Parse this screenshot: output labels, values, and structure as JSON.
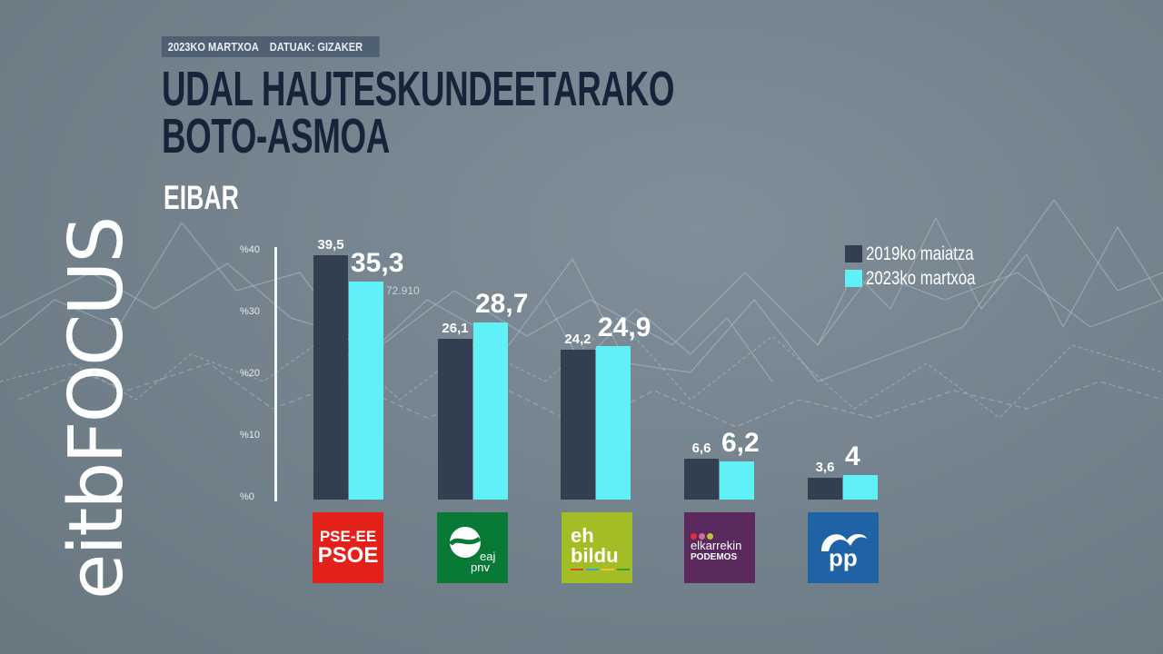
{
  "header": {
    "date_tag": "2023KO MARTXOA",
    "source_tag": "DATUAK: GIZAKER",
    "title_line1": "UDAL HAUTESKUNDEETARAKO",
    "title_line2": "BOTO-ASMOA",
    "subtitle": "EIBAR"
  },
  "brand": {
    "logo_text": "eitbFOCUS"
  },
  "colors": {
    "series_2019": "#323f50",
    "series_2023": "#5ff0f8",
    "background": "#74838d",
    "title": "#172338"
  },
  "annotation": "72.910",
  "parties": [
    {
      "name": "PSE-EE PSOE",
      "line1": "PSE-EE",
      "line2": "PSOE",
      "color": "#e4201b"
    },
    {
      "name": "EAJ-PNV",
      "line1": "eaj",
      "line2": "pnv",
      "color": "#087a36"
    },
    {
      "name": "EH Bildu",
      "line1": "eh",
      "line2": "bildu",
      "color": "#a3be24"
    },
    {
      "name": "Elkarrekin Podemos",
      "line1": "elkarrekin",
      "line2": "PODEMOS",
      "color": "#5a2a5f"
    },
    {
      "name": "PP",
      "line1": "PP",
      "line2": "",
      "color": "#1f63a6"
    }
  ],
  "chart_data": {
    "type": "bar",
    "title": "UDAL HAUTESKUNDEETARAKO BOTO-ASMOA — EIBAR",
    "categories": [
      "PSE-EE PSOE",
      "EAJ-PNV",
      "EH Bildu",
      "Elkarrekin Podemos",
      "PP"
    ],
    "series": [
      {
        "name": "2019ko maiatza",
        "values": [
          39.5,
          26.1,
          24.2,
          6.6,
          3.6
        ],
        "labels": [
          "39,5",
          "26,1",
          "24,2",
          "6,6",
          "3,6"
        ]
      },
      {
        "name": "2023ko martxoa",
        "values": [
          35.3,
          28.7,
          24.9,
          6.2,
          4.0
        ],
        "labels": [
          "35,3",
          "28,7",
          "24,9",
          "6,2",
          "4"
        ]
      }
    ],
    "xlabel": "",
    "ylabel": "",
    "yticks": [
      "%0",
      "%10",
      "%20",
      "%30",
      "%40"
    ],
    "ylim": [
      0,
      40
    ],
    "grid": false,
    "legend_position": "top-right",
    "annotations": [
      "72.910"
    ]
  }
}
